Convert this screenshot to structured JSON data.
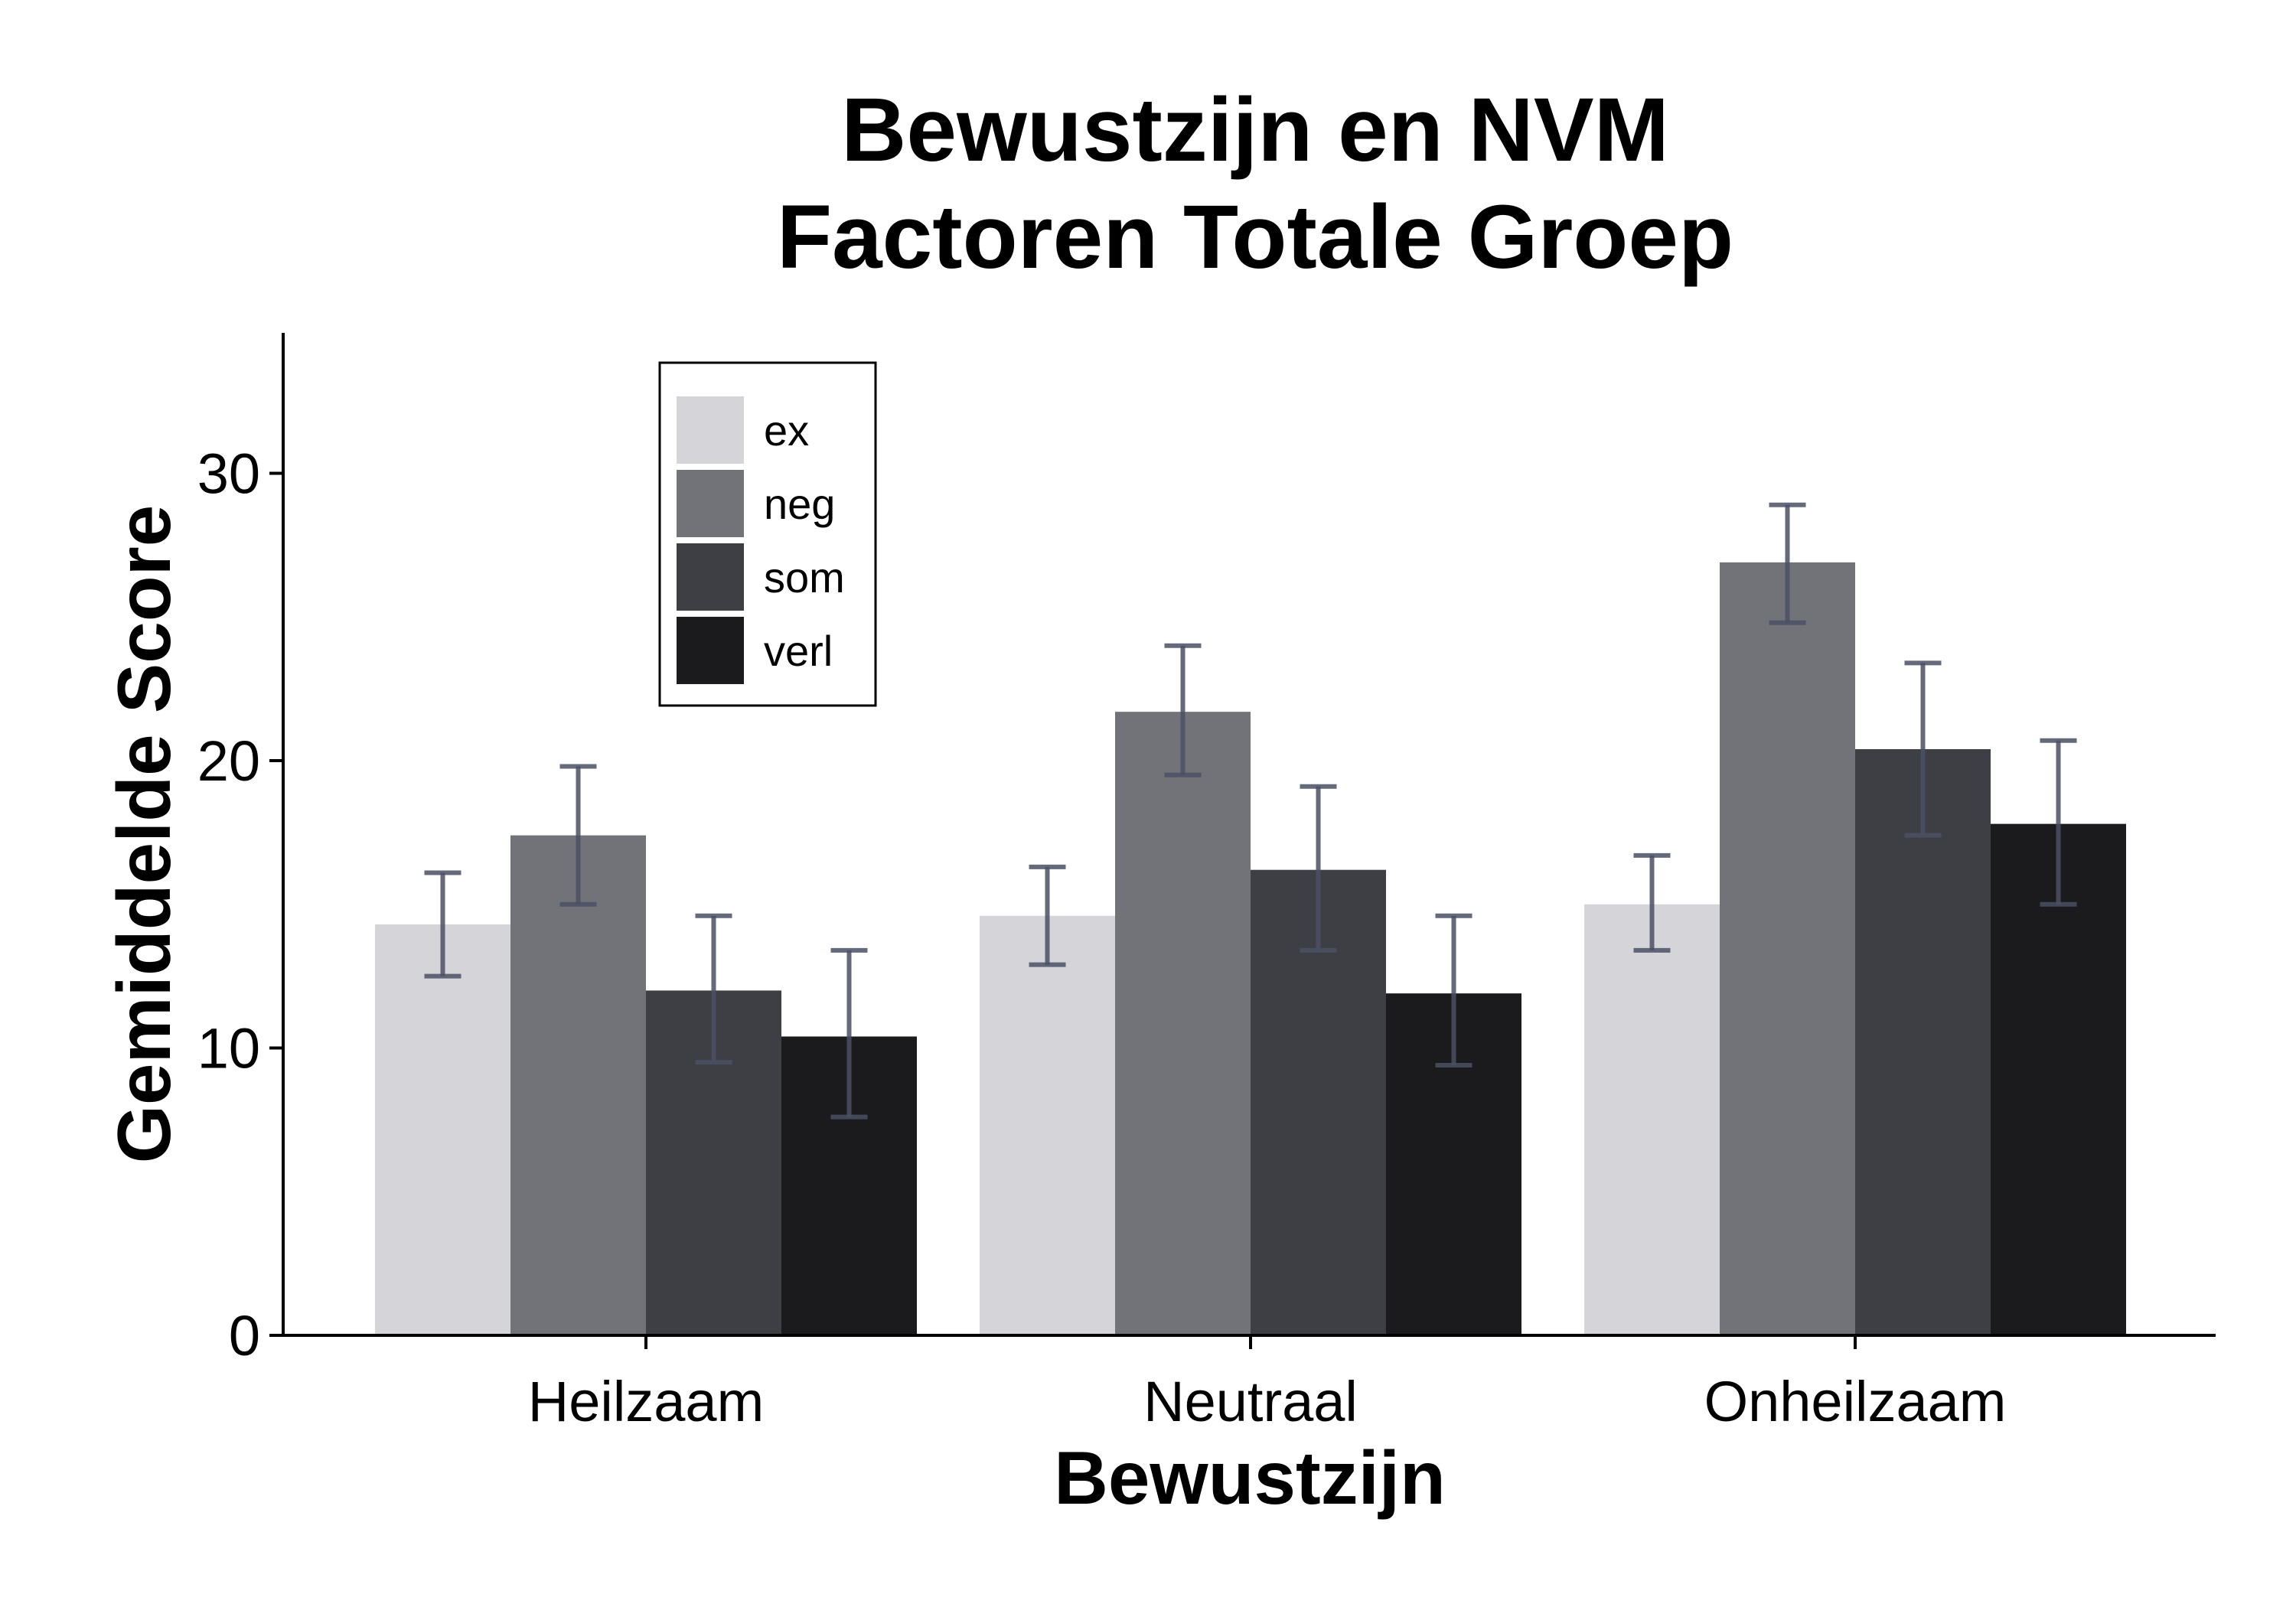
{
  "chart_data": {
    "type": "bar",
    "title": [
      "Bewustzijn en NVM",
      "Factoren Totale Groep"
    ],
    "xlabel": "Bewustzijn",
    "ylabel": "Gemiddelde Score",
    "categories": [
      "Heilzaam",
      "Neutraal",
      "Onheilzaam"
    ],
    "ylim": [
      0,
      35
    ],
    "yticks": [
      "0",
      "10",
      "20",
      "30"
    ],
    "ytick_values": [
      0,
      10,
      20,
      30
    ],
    "grid": false,
    "legend_position": "top-left",
    "series": [
      {
        "name": "ex",
        "color": "#d5d5d9",
        "values": [
          14.3,
          14.6,
          15.0
        ],
        "err_low": [
          12.5,
          12.9,
          13.4
        ],
        "err_high": [
          16.1,
          16.3,
          16.7
        ]
      },
      {
        "name": "neg",
        "color": "#727279",
        "values": [
          17.4,
          21.7,
          26.9
        ],
        "err_low": [
          15.0,
          19.5,
          24.8
        ],
        "err_high": [
          19.8,
          24.0,
          28.9
        ]
      },
      {
        "name": "som",
        "color": "#3e3f44",
        "values": [
          12.0,
          16.2,
          20.4
        ],
        "err_low": [
          9.5,
          13.4,
          17.4
        ],
        "err_high": [
          14.6,
          19.1,
          23.4
        ]
      },
      {
        "name": "verl",
        "color": "#1b1b1d",
        "values": [
          10.4,
          11.9,
          17.8
        ],
        "err_low": [
          7.6,
          9.4,
          15.0
        ],
        "err_high": [
          13.4,
          14.6,
          20.7
        ]
      }
    ],
    "error_bar_color": "#4a5064"
  }
}
